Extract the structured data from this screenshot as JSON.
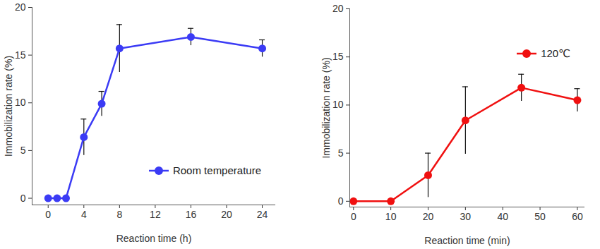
{
  "chart_data": [
    {
      "type": "line",
      "x_label": "Reaction time (h)",
      "y_label": "Immobilization rate (%)",
      "x": [
        0,
        1,
        2,
        4,
        6,
        8,
        16,
        24
      ],
      "series": [
        {
          "name": "Room temperature",
          "color": "#3b3bf5",
          "marker": "circle",
          "values": [
            0,
            0,
            0,
            6.4,
            9.9,
            15.7,
            16.9,
            15.7
          ],
          "errors": [
            0,
            0,
            0,
            1.9,
            1.3,
            2.5,
            0.9,
            0.9
          ]
        }
      ],
      "xlim": [
        -1.8,
        25.5
      ],
      "xticks": [
        0,
        4,
        8,
        12,
        16,
        20,
        24
      ],
      "ylim": [
        -0.7,
        20
      ],
      "yticks": [
        0,
        5,
        10,
        15,
        20
      ],
      "legend": "lower right"
    },
    {
      "type": "line",
      "x_label": "Reaction time (min)",
      "y_label": "Immobilization rate (%)",
      "x": [
        0,
        10,
        20,
        30,
        45,
        60
      ],
      "series": [
        {
          "name": "120℃",
          "color": "#f01010",
          "marker": "circle",
          "values": [
            0,
            0,
            2.7,
            8.4,
            11.8,
            10.5
          ],
          "errors": [
            0,
            0,
            2.3,
            3.5,
            1.4,
            1.2
          ]
        }
      ],
      "xlim": [
        -1,
        62
      ],
      "xticks": [
        0,
        10,
        20,
        30,
        40,
        50,
        60
      ],
      "ylim": [
        -0.6,
        20
      ],
      "yticks": [
        0,
        5,
        10,
        15,
        20
      ],
      "legend": "upper right"
    }
  ]
}
